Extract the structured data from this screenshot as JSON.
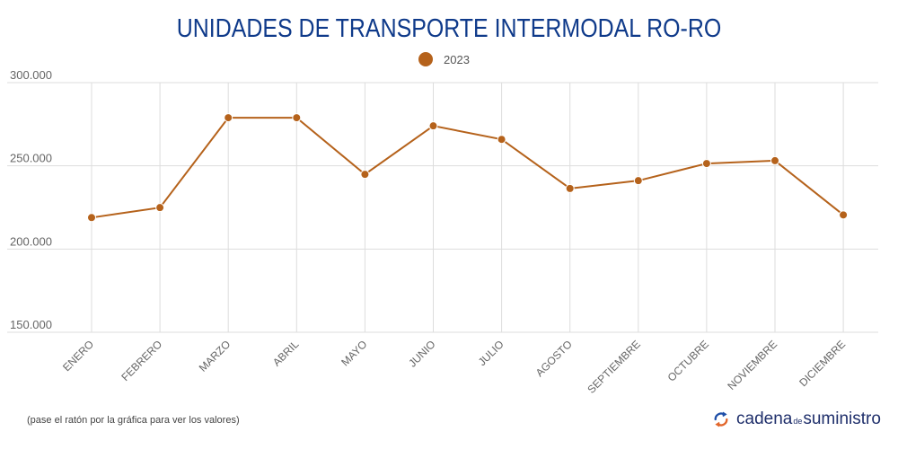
{
  "chart_data": {
    "type": "line",
    "title": "UNIDADES DE TRANSPORTE INTERMODAL RO-RO",
    "xlabel": "",
    "ylabel": "",
    "categories": [
      "ENERO",
      "FEBRERO",
      "MARZO",
      "ABRIL",
      "MAYO",
      "JUNIO",
      "JULIO",
      "AGOSTO",
      "SEPTIEMBRE",
      "OCTUBRE",
      "NOVIEMBRE",
      "DICIEMBRE"
    ],
    "series": [
      {
        "name": "2023",
        "color": "#b5621b",
        "values": [
          218900,
          224900,
          278900,
          278900,
          244900,
          274000,
          265900,
          236400,
          241100,
          251400,
          253100,
          220500
        ]
      }
    ],
    "ylim": [
      150000,
      300000
    ],
    "yticks": [
      150000,
      200000,
      250000,
      300000
    ],
    "ytick_labels": [
      "150.000",
      "200.000",
      "250.000",
      "300.000"
    ],
    "grid": true,
    "legend_position": "top-center"
  },
  "legend": {
    "label": "2023",
    "color": "#b5621b"
  },
  "footer": {
    "note": "(pase el ratón por la gráfica para ver los valores)",
    "logo_part1": "cadena",
    "logo_part2": "de",
    "logo_part3": "suministro"
  }
}
